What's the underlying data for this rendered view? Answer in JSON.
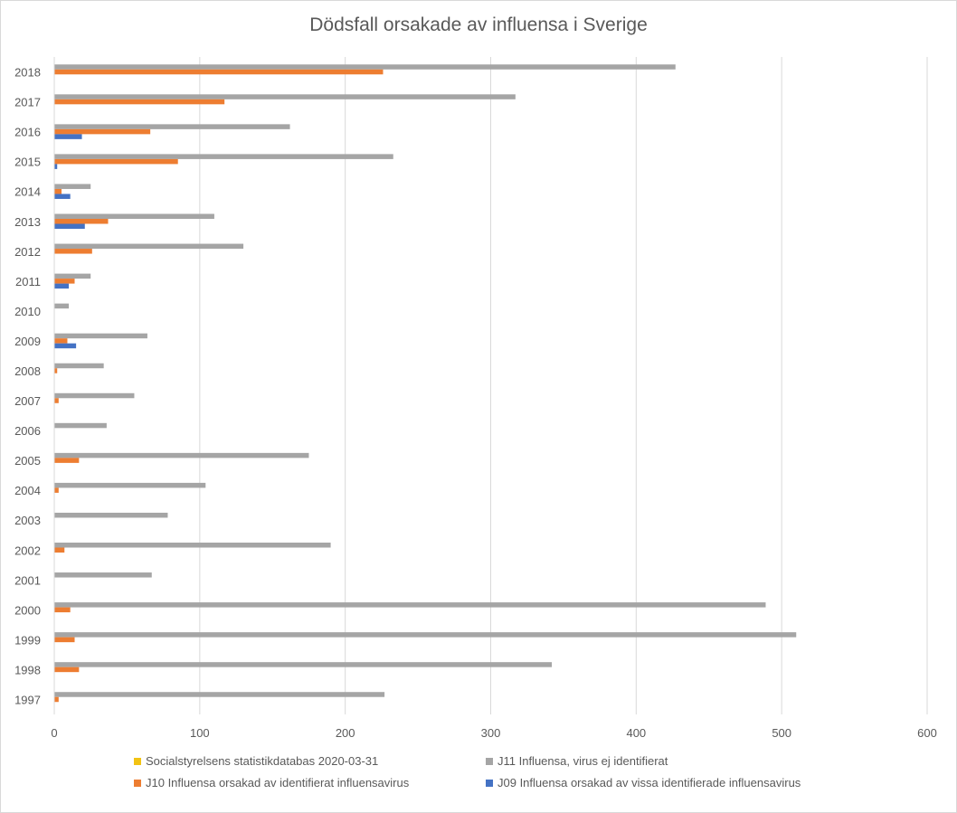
{
  "chart_data": {
    "type": "bar",
    "orientation": "horizontal",
    "title": "Dödsfall orsakade av influensa i Sverige",
    "categories": [
      "1997",
      "1998",
      "1999",
      "2000",
      "2001",
      "2002",
      "2003",
      "2004",
      "2005",
      "2006",
      "2007",
      "2008",
      "2009",
      "2010",
      "2011",
      "2012",
      "2013",
      "2014",
      "2015",
      "2016",
      "2017",
      "2018"
    ],
    "series": [
      {
        "name": "Socialstyrelsens statistikdatabas 2020-03-31",
        "color": "#f2c314",
        "values": [
          0,
          0,
          0,
          0,
          0,
          0,
          0,
          0,
          0,
          0,
          0,
          0,
          0,
          0,
          0,
          0,
          0,
          0,
          0,
          0,
          0,
          0
        ]
      },
      {
        "name": "J11 Influensa, virus ej identifierat",
        "color": "#a5a5a5",
        "values": [
          227,
          342,
          510,
          489,
          67,
          190,
          78,
          104,
          175,
          36,
          55,
          34,
          64,
          10,
          25,
          130,
          110,
          25,
          233,
          162,
          317,
          427
        ]
      },
      {
        "name": "J10 Influensa orsakad av identifierat influensavirus",
        "color": "#ed7d31",
        "values": [
          3,
          17,
          14,
          11,
          0,
          7,
          0,
          3,
          17,
          0,
          3,
          2,
          9,
          0,
          14,
          26,
          37,
          5,
          85,
          66,
          117,
          226
        ]
      },
      {
        "name": "J09 Influensa orsakad av vissa identifierade influensavirus",
        "color": "#4472c4",
        "values": [
          0,
          0,
          0,
          0,
          0,
          0,
          0,
          0,
          0,
          0,
          0,
          0,
          15,
          0,
          10,
          0,
          21,
          11,
          2,
          19,
          0,
          0
        ]
      }
    ],
    "xlim": [
      0,
      600
    ],
    "x_ticks": [
      "0",
      "100",
      "200",
      "300",
      "400",
      "500",
      "600"
    ],
    "grid": true,
    "legend_position": "bottom"
  }
}
